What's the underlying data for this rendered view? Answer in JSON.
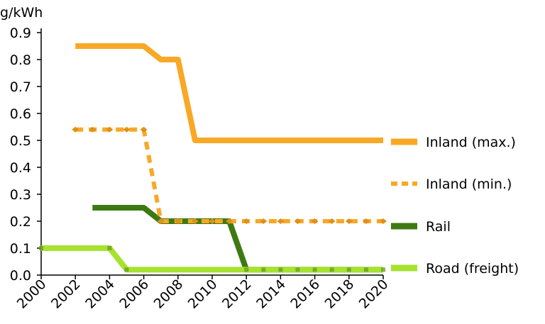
{
  "chart_data": {
    "type": "line",
    "title": "",
    "xlabel": "",
    "ylabel": "g/kWh",
    "xlim": [
      2000,
      2020
    ],
    "ylim": [
      0,
      0.9
    ],
    "xticks": [
      "2000",
      "2002",
      "2004",
      "2006",
      "2008",
      "2010",
      "2012",
      "2014",
      "2016",
      "2018",
      "2020"
    ],
    "yticks": [
      "0.0",
      "0.1",
      "0.2",
      "0.3",
      "0.4",
      "0.5",
      "0.6",
      "0.7",
      "0.8",
      "0.9"
    ],
    "grid": false,
    "legend_position": "right",
    "series": [
      {
        "name": "Inland (max.)",
        "color": "#f9a825",
        "style": "solid",
        "marker": "none",
        "points": [
          [
            2002,
            0.85
          ],
          [
            2006,
            0.85
          ],
          [
            2007,
            0.8
          ],
          [
            2008,
            0.8
          ],
          [
            2009,
            0.5
          ],
          [
            2020,
            0.5
          ]
        ]
      },
      {
        "name": "Inland (min.)",
        "color": "#f9a825",
        "style": "dashed",
        "marker": "diamond",
        "points": [
          [
            2002,
            0.54
          ],
          [
            2003,
            0.54
          ],
          [
            2004,
            0.54
          ],
          [
            2005,
            0.54
          ],
          [
            2006,
            0.54
          ],
          [
            2007,
            0.2
          ],
          [
            2008,
            0.2
          ],
          [
            2009,
            0.2
          ],
          [
            2010,
            0.2
          ],
          [
            2011,
            0.2
          ],
          [
            2012,
            0.2
          ],
          [
            2013,
            0.2
          ],
          [
            2014,
            0.2
          ],
          [
            2015,
            0.2
          ],
          [
            2016,
            0.2
          ],
          [
            2017,
            0.2
          ],
          [
            2018,
            0.2
          ],
          [
            2019,
            0.2
          ],
          [
            2020,
            0.2
          ]
        ]
      },
      {
        "name": "Rail",
        "color": "#3d7a12",
        "style": "solid",
        "marker": "none",
        "points": [
          [
            2003,
            0.25
          ],
          [
            2006,
            0.25
          ],
          [
            2007,
            0.2
          ],
          [
            2011,
            0.2
          ],
          [
            2012,
            0.02
          ],
          [
            2020,
            0.02
          ]
        ]
      },
      {
        "name": "Road (freight)",
        "color": "#a6e22e",
        "style": "solid",
        "marker": "square",
        "points": [
          [
            2000,
            0.1
          ],
          [
            2004,
            0.1
          ],
          [
            2005,
            0.02
          ],
          [
            2012,
            0.02
          ],
          [
            2013,
            0.02
          ],
          [
            2014,
            0.02
          ],
          [
            2015,
            0.02
          ],
          [
            2016,
            0.02
          ],
          [
            2017,
            0.02
          ],
          [
            2018,
            0.02
          ],
          [
            2019,
            0.02
          ],
          [
            2020,
            0.02
          ]
        ]
      }
    ]
  }
}
